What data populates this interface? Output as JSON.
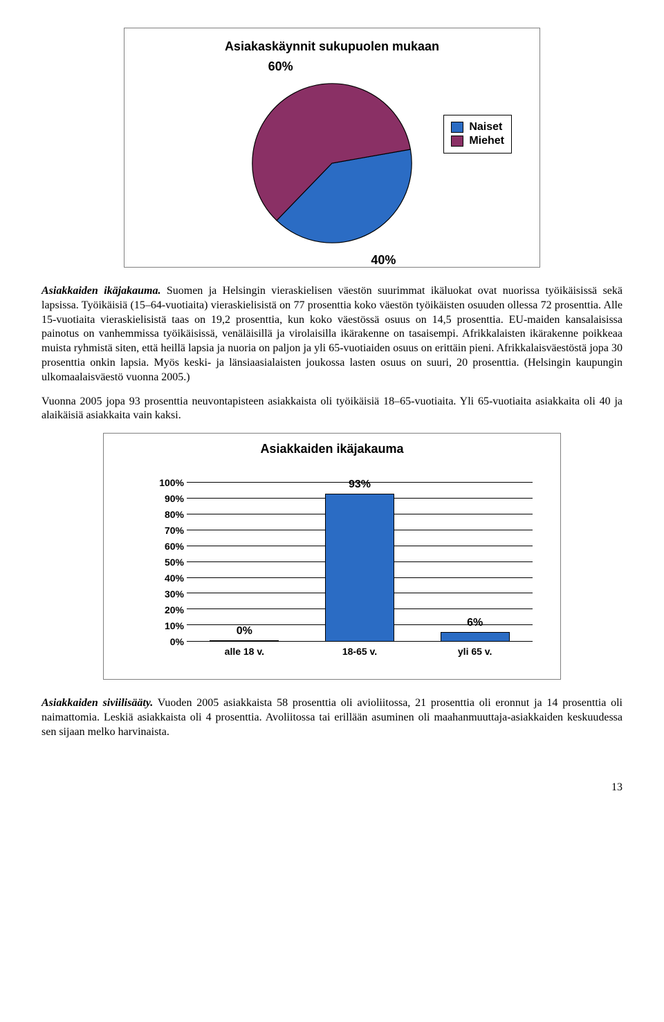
{
  "pie_chart": {
    "title": "Asiakaskäynnit sukupuolen mukaan",
    "title_fontsize": 18,
    "slices": [
      {
        "label": "Naiset",
        "value": 40,
        "color": "#2b6cc4",
        "display": "40%"
      },
      {
        "label": "Miehet",
        "value": 60,
        "color": "#8a3065",
        "display": "60%"
      }
    ],
    "background_color": "#ffffff",
    "border_color": "#808080",
    "legend_border_color": "#000000",
    "label_fontsize": 18,
    "legend_fontsize": 16,
    "start_angle_deg": -10
  },
  "paragraph1_lead": "Asiakkaiden ikäjakauma.",
  "paragraph1_rest": " Suomen ja Helsingin vieraskielisen väestön suurimmat ikäluokat ovat nuorissa työikäisissä sekä lapsissa. Työikäisiä (15–64-vuotiaita) vieraskielisistä on 77 prosenttia koko väestön työikäisten osuuden ollessa 72 prosenttia. Alle 15-vuotiaita vieraskielisistä taas on 19,2 prosenttia, kun koko väestössä osuus on 14,5 prosenttia. EU-maiden kansalaisissa painotus on vanhemmissa työikäisissä, venäläisillä ja virolaisilla ikärakenne on tasaisempi. Afrikkalaisten ikärakenne poikkeaa muista ryhmistä siten, että heillä lapsia ja nuoria on paljon ja yli 65-vuotiaiden osuus on erittäin pieni. Afrikkalaisväestöstä jopa 30 prosenttia onkin lapsia. Myös keski- ja länsiaasialaisten joukossa lasten osuus on suuri, 20 prosenttia. (Helsingin kaupungin ulkomaalaisväestö vuonna 2005.)",
  "paragraph2": "Vuonna 2005 jopa 93 prosenttia neuvontapisteen asiakkaista oli työikäisiä 18–65-vuotiaita. Yli 65-vuotiaita asiakkaita oli 40 ja alaikäisiä asiakkaita vain kaksi.",
  "bar_chart": {
    "title": "Asiakkaiden ikäjakauma",
    "title_fontsize": 18,
    "categories": [
      "alle 18 v.",
      "18-65 v.",
      "yli 65 v."
    ],
    "values": [
      0,
      93,
      6
    ],
    "value_labels": [
      "0%",
      "93%",
      "6%"
    ],
    "bar_color": "#2b6cc4",
    "bar_border_color": "#000000",
    "yticks": [
      "0%",
      "10%",
      "20%",
      "30%",
      "40%",
      "50%",
      "60%",
      "70%",
      "80%",
      "90%",
      "100%"
    ],
    "ymax": 100,
    "background_color": "#ffffff",
    "gridline_color": "#000000",
    "label_fontsize": 14,
    "value_fontsize": 16,
    "bar_width_ratio": 0.6
  },
  "paragraph3_lead": "Asiakkaiden siviilisääty.",
  "paragraph3_rest": " Vuoden 2005 asiakkaista 58 prosenttia oli avioliitossa, 21 prosenttia oli eronnut ja 14 prosenttia oli naimattomia. Leskiä asiakkaista oli 4 prosenttia. Avoliitossa tai erillään asuminen oli maahanmuuttaja-asiakkaiden keskuudessa sen sijaan melko harvinaista.",
  "page_number": "13"
}
